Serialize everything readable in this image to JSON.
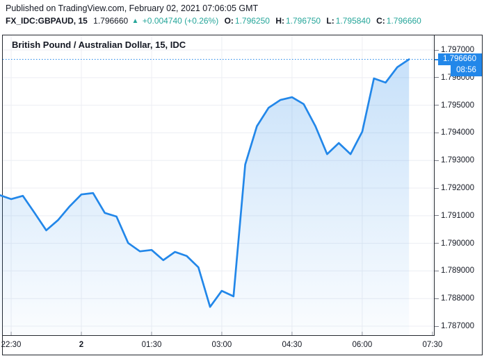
{
  "header": {
    "published_line": "Published on TradingView.com, February 02, 2021 07:06:05 GMT",
    "symbol": "FX_IDC:GBPAUD, 15",
    "last_price": "1.796660",
    "direction_icon": "▲",
    "change": "+0.004740 (+0.26%)",
    "ohlc": [
      {
        "label": "O:",
        "value": "1.796250"
      },
      {
        "label": "H:",
        "value": "1.796750"
      },
      {
        "label": "L:",
        "value": "1.795840"
      },
      {
        "label": "C:",
        "value": "1.796660"
      }
    ]
  },
  "chart": {
    "title": "British Pound / Australian Dollar, 15, IDC",
    "price_badge": "1.796660",
    "countdown_badge": "08:56",
    "colors": {
      "line": "#2287e9",
      "badge": "#2287e9",
      "teal": "#26A69A",
      "dark_text": "#131722",
      "grid": "#eceef3",
      "border": "#23272e",
      "axis_tick": "#787b86"
    }
  },
  "chart_data": {
    "type": "area",
    "title": "British Pound / Australian Dollar, 15, IDC",
    "symbol": "FX_IDC:GBPAUD",
    "interval_minutes": 15,
    "x_unit": "hours relative to 2021-02-02 00:00 GMT",
    "x_domain": [
      -1.679,
      7.532
    ],
    "y_domain": [
      1.786674,
      1.797528
    ],
    "current_price": 1.79666,
    "x_ticks": [
      {
        "label": "22:30",
        "hour": -1.5,
        "bold": false
      },
      {
        "label": "2",
        "hour": 0,
        "bold": true
      },
      {
        "label": "01:30",
        "hour": 1.5,
        "bold": false
      },
      {
        "label": "03:00",
        "hour": 3,
        "bold": false
      },
      {
        "label": "04:30",
        "hour": 4.5,
        "bold": false
      },
      {
        "label": "06:00",
        "hour": 6,
        "bold": false
      },
      {
        "label": "07:30",
        "hour": 7.5,
        "bold": false
      }
    ],
    "y_ticks": [
      {
        "label": "1.797000",
        "price": 1.797
      },
      {
        "label": "1.796000",
        "price": 1.796
      },
      {
        "label": "1.795000",
        "price": 1.795
      },
      {
        "label": "1.794000",
        "price": 1.794
      },
      {
        "label": "1.793000",
        "price": 1.793
      },
      {
        "label": "1.792000",
        "price": 1.792
      },
      {
        "label": "1.791000",
        "price": 1.791
      },
      {
        "label": "1.790000",
        "price": 1.79
      },
      {
        "label": "1.789000",
        "price": 1.789
      },
      {
        "label": "1.788000",
        "price": 1.788
      },
      {
        "label": "1.787000",
        "price": 1.787
      }
    ],
    "points": [
      [
        -1.75,
        1.79175
      ],
      [
        -1.5,
        1.7916
      ],
      [
        -1.25,
        1.79172
      ],
      [
        -1.0,
        1.7911
      ],
      [
        -0.75,
        1.79047
      ],
      [
        -0.5,
        1.79084
      ],
      [
        -0.25,
        1.79134
      ],
      [
        0.0,
        1.79177
      ],
      [
        0.25,
        1.79182
      ],
      [
        0.5,
        1.7911
      ],
      [
        0.75,
        1.79097
      ],
      [
        1.0,
        1.79001
      ],
      [
        1.25,
        1.78971
      ],
      [
        1.5,
        1.78976
      ],
      [
        1.75,
        1.78939
      ],
      [
        2.0,
        1.78969
      ],
      [
        2.25,
        1.78954
      ],
      [
        2.5,
        1.78913
      ],
      [
        2.75,
        1.7877
      ],
      [
        3.0,
        1.78828
      ],
      [
        3.25,
        1.78808
      ],
      [
        3.5,
        1.79285
      ],
      [
        3.75,
        1.79424
      ],
      [
        4.0,
        1.79491
      ],
      [
        4.25,
        1.79519
      ],
      [
        4.5,
        1.79529
      ],
      [
        4.75,
        1.79504
      ],
      [
        5.0,
        1.79424
      ],
      [
        5.25,
        1.79323
      ],
      [
        5.5,
        1.79363
      ],
      [
        5.75,
        1.79323
      ],
      [
        6.0,
        1.79404
      ],
      [
        6.25,
        1.79597
      ],
      [
        6.5,
        1.79582
      ],
      [
        6.75,
        1.79638
      ],
      [
        7.0,
        1.79666
      ]
    ]
  }
}
